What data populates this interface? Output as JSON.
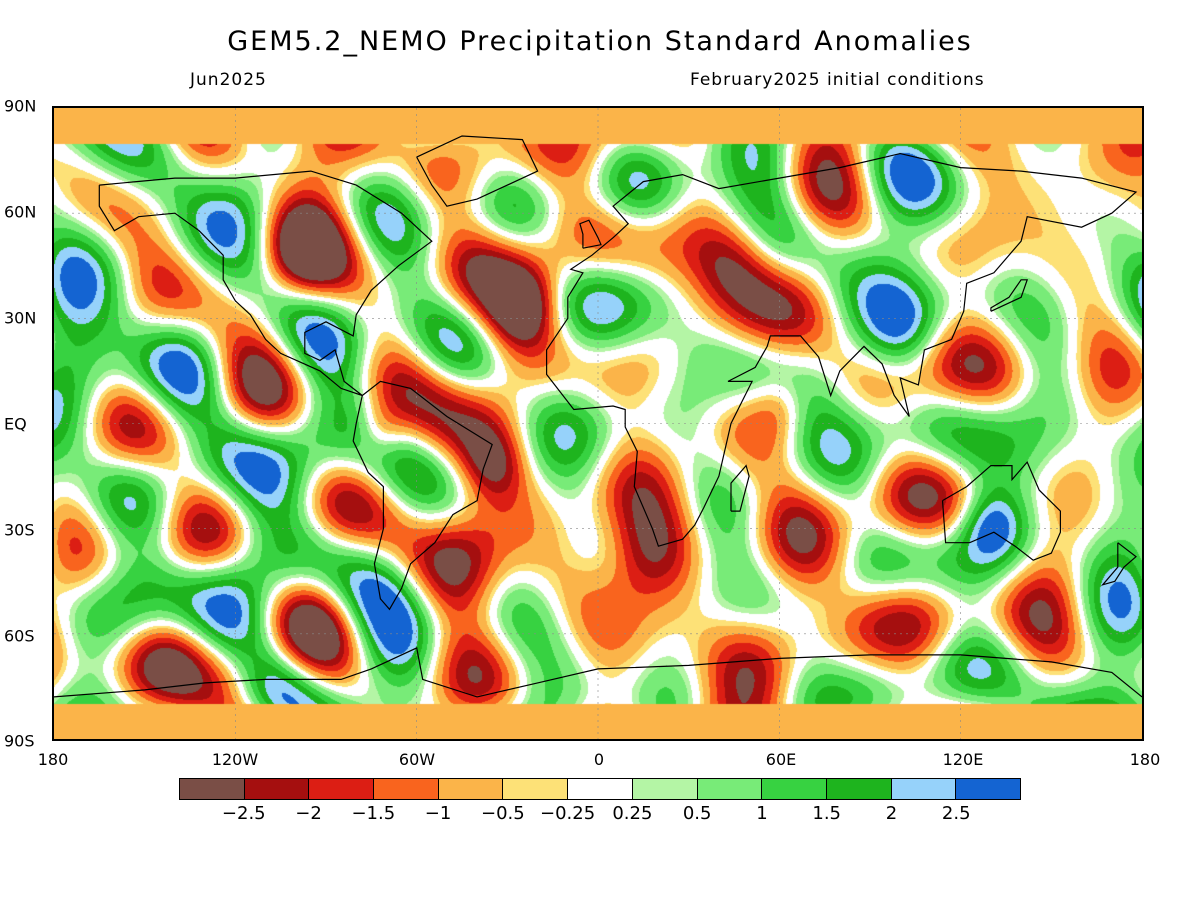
{
  "title": "GEM5.2_NEMO Precipitation Standard Anomalies",
  "subtitle_left": "Jun2025",
  "subtitle_right": "February2025 initial conditions",
  "lat_labels": [
    "90N",
    "60N",
    "30N",
    "EQ",
    "30S",
    "60S",
    "90S"
  ],
  "lon_labels": [
    "180",
    "120W",
    "60W",
    "0",
    "60E",
    "120E",
    "180"
  ],
  "legend": {
    "colors": [
      "#7a4e46",
      "#a50f0f",
      "#dc1e14",
      "#f9641e",
      "#fbb449",
      "#fde177",
      "#ffffff",
      "#b4f5a5",
      "#78eb78",
      "#37d241",
      "#1eb41e",
      "#96d2fa",
      "#1464d2"
    ],
    "labels": [
      "-2.5",
      "-2",
      "-1.5",
      "-1",
      "-0.5",
      "-0.25",
      "0.25",
      "0.5",
      "1",
      "1.5",
      "2",
      "2.5"
    ]
  }
}
